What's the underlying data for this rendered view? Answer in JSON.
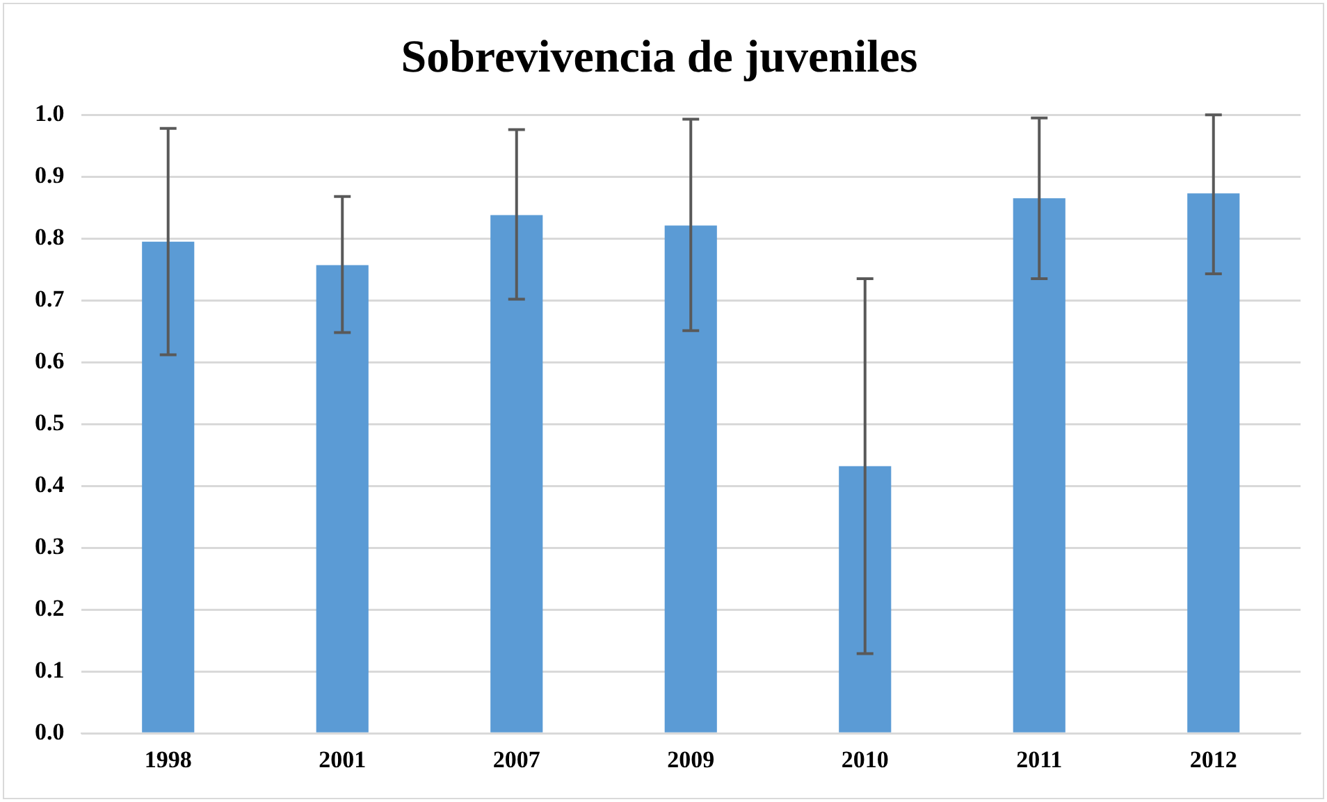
{
  "chart_data": {
    "type": "bar",
    "title": "Sobrevivencia de juveniles",
    "categories": [
      "1998",
      "2001",
      "2007",
      "2009",
      "2010",
      "2011",
      "2012"
    ],
    "values": [
      0.795,
      0.757,
      0.838,
      0.821,
      0.432,
      0.865,
      0.873
    ],
    "errors": [
      [
        0.612,
        0.978
      ],
      [
        0.648,
        0.868
      ],
      [
        0.702,
        0.976
      ],
      [
        0.651,
        0.993
      ],
      [
        0.129,
        0.735
      ],
      [
        0.735,
        0.995
      ],
      [
        0.743,
        1.0
      ]
    ],
    "color": "#5b9bd5",
    "ylim": [
      0,
      1
    ],
    "yticks": [
      {
        "value": 0,
        "label": "0.0"
      },
      {
        "value": 0.1,
        "label": "0.1"
      },
      {
        "value": 0.2,
        "label": "0.2"
      },
      {
        "value": 0.3,
        "label": "0.3"
      },
      {
        "value": 0.4,
        "label": "0.4"
      },
      {
        "value": 0.5,
        "label": "0.5"
      },
      {
        "value": 0.6,
        "label": "0.6"
      },
      {
        "value": 0.7,
        "label": "0.7"
      },
      {
        "value": 0.8,
        "label": "0.8"
      },
      {
        "value": 0.9,
        "label": "0.9"
      },
      {
        "value": 1,
        "label": "1.0"
      }
    ],
    "grid": "y"
  }
}
